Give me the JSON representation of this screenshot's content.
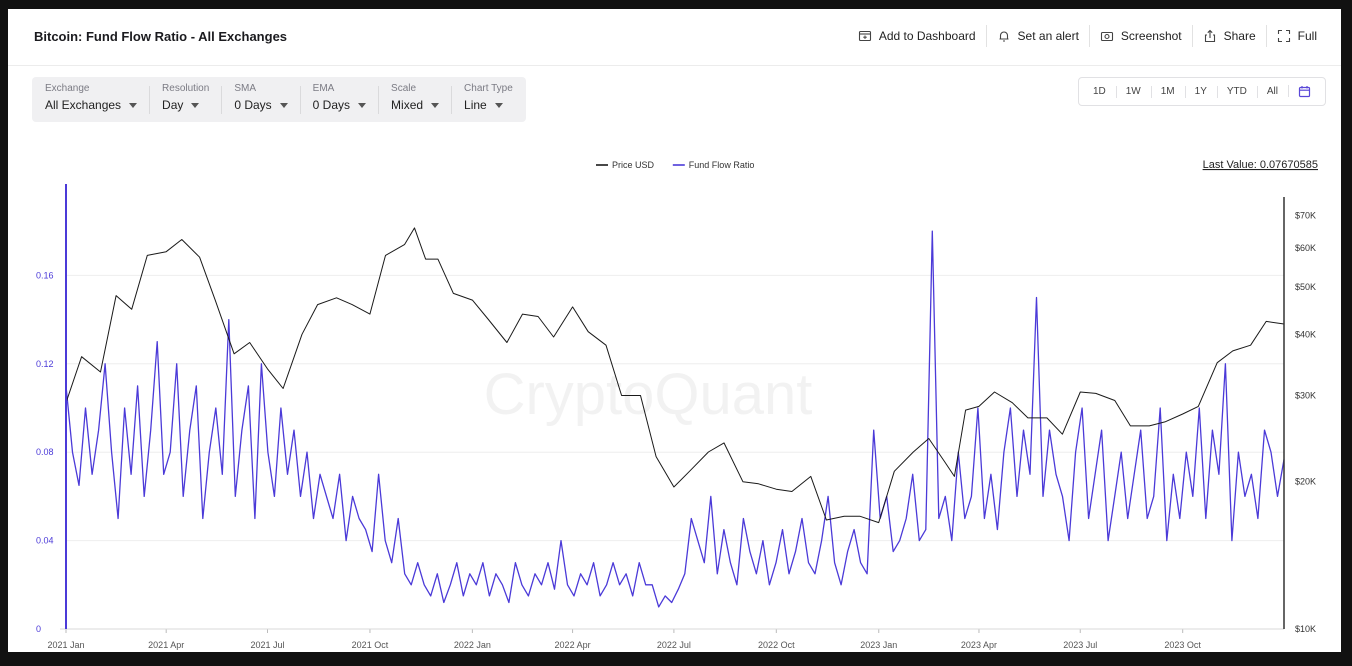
{
  "header": {
    "title": "Bitcoin: Fund Flow Ratio - All Exchanges",
    "actions": [
      {
        "label": "Add to Dashboard",
        "icon": "dashboard-icon"
      },
      {
        "label": "Set an alert",
        "icon": "bell-icon"
      },
      {
        "label": "Screenshot",
        "icon": "camera-icon"
      },
      {
        "label": "Share",
        "icon": "share-icon"
      },
      {
        "label": "Full",
        "icon": "fullscreen-icon"
      }
    ]
  },
  "filters": [
    {
      "label": "Exchange",
      "value": "All Exchanges"
    },
    {
      "label": "Resolution",
      "value": "Day"
    },
    {
      "label": "SMA",
      "value": "0 Days"
    },
    {
      "label": "EMA",
      "value": "0 Days"
    },
    {
      "label": "Scale",
      "value": "Mixed"
    },
    {
      "label": "Chart Type",
      "value": "Line"
    }
  ],
  "ranges": [
    "1D",
    "1W",
    "1M",
    "1Y",
    "YTD",
    "All"
  ],
  "calendar_icon": "calendar-icon",
  "watermark": "CryptoQuant",
  "colors": {
    "price": "#1a1a1a",
    "ratio": "#4b3ad8",
    "axis_left": "#4b3ad8",
    "axis_right": "#333333",
    "grid": "#eeeeee"
  },
  "chart_data": {
    "type": "line",
    "title": "Bitcoin: Fund Flow Ratio - All Exchanges",
    "last_value_label": "Last Value: 0.07670585",
    "legend_position": "top-center",
    "grid": true,
    "x_tick_labels": [
      "2021 Jan",
      "2021 Apr",
      "2021 Jul",
      "2021 Oct",
      "2022 Jan",
      "2022 Apr",
      "2022 Jul",
      "2022 Oct",
      "2023 Jan",
      "2023 Apr",
      "2023 Jul",
      "2023 Oct"
    ],
    "x_range": [
      "2021-01-01",
      "2023-12-31"
    ],
    "y_left": {
      "ticks": [
        "0",
        "0.04",
        "0.08",
        "0.12",
        "0.16"
      ],
      "ylim": [
        0,
        0.2
      ]
    },
    "y_right": {
      "scale": "log",
      "ticks": [
        "$10K",
        "$20K",
        "$30K",
        "$40K",
        "$50K",
        "$60K",
        "$70K"
      ],
      "ylim": [
        10000,
        80000
      ]
    },
    "series": [
      {
        "name": "Price USD",
        "axis": "right",
        "x": [
          "2021-01-01",
          "2021-01-15",
          "2021-02-01",
          "2021-02-15",
          "2021-03-01",
          "2021-03-15",
          "2021-04-01",
          "2021-04-15",
          "2021-05-01",
          "2021-05-15",
          "2021-06-01",
          "2021-06-15",
          "2021-07-01",
          "2021-07-15",
          "2021-08-01",
          "2021-08-15",
          "2021-09-01",
          "2021-09-15",
          "2021-10-01",
          "2021-10-15",
          "2021-11-01",
          "2021-11-10",
          "2021-11-20",
          "2021-12-01",
          "2021-12-15",
          "2022-01-01",
          "2022-01-15",
          "2022-02-01",
          "2022-02-15",
          "2022-03-01",
          "2022-03-15",
          "2022-04-01",
          "2022-04-15",
          "2022-05-01",
          "2022-05-15",
          "2022-06-01",
          "2022-06-15",
          "2022-07-01",
          "2022-07-15",
          "2022-08-01",
          "2022-08-15",
          "2022-09-01",
          "2022-09-15",
          "2022-10-01",
          "2022-10-15",
          "2022-11-01",
          "2022-11-15",
          "2022-12-01",
          "2022-12-15",
          "2023-01-01",
          "2023-01-15",
          "2023-02-01",
          "2023-02-15",
          "2023-03-01",
          "2023-03-10",
          "2023-03-20",
          "2023-04-01",
          "2023-04-15",
          "2023-05-01",
          "2023-05-15",
          "2023-06-01",
          "2023-06-15",
          "2023-07-01",
          "2023-07-15",
          "2023-08-01",
          "2023-08-15",
          "2023-09-01",
          "2023-09-15",
          "2023-10-01",
          "2023-10-15",
          "2023-11-01",
          "2023-11-15",
          "2023-12-01",
          "2023-12-15",
          "2023-12-31"
        ],
        "values": [
          29000,
          36000,
          33500,
          48000,
          45000,
          58000,
          59000,
          62500,
          57500,
          47000,
          36500,
          38500,
          34000,
          31000,
          40000,
          46000,
          47500,
          46000,
          44000,
          58000,
          61000,
          66000,
          57000,
          57000,
          48500,
          47000,
          43000,
          38500,
          44000,
          43500,
          39500,
          45500,
          40500,
          38000,
          30000,
          30000,
          22500,
          19500,
          21000,
          23000,
          24000,
          20000,
          19800,
          19300,
          19100,
          20500,
          16700,
          17000,
          17000,
          16500,
          21000,
          23000,
          24500,
          22000,
          20500,
          28000,
          28500,
          30500,
          29000,
          27000,
          27000,
          25000,
          30500,
          30300,
          29300,
          26000,
          26000,
          26500,
          27500,
          28500,
          35000,
          37000,
          38000,
          42500,
          42000
        ]
      },
      {
        "name": "Fund Flow Ratio",
        "axis": "left",
        "x_start": "2021-01-01",
        "x_end": "2023-12-31",
        "values": [
          0.11,
          0.08,
          0.065,
          0.1,
          0.07,
          0.09,
          0.12,
          0.08,
          0.05,
          0.1,
          0.07,
          0.11,
          0.06,
          0.09,
          0.13,
          0.07,
          0.08,
          0.12,
          0.06,
          0.09,
          0.11,
          0.05,
          0.08,
          0.1,
          0.07,
          0.14,
          0.06,
          0.09,
          0.11,
          0.05,
          0.12,
          0.08,
          0.06,
          0.1,
          0.07,
          0.09,
          0.06,
          0.08,
          0.05,
          0.07,
          0.06,
          0.05,
          0.07,
          0.04,
          0.06,
          0.05,
          0.045,
          0.035,
          0.07,
          0.04,
          0.03,
          0.05,
          0.025,
          0.02,
          0.03,
          0.02,
          0.015,
          0.025,
          0.012,
          0.02,
          0.03,
          0.015,
          0.025,
          0.02,
          0.03,
          0.015,
          0.025,
          0.02,
          0.012,
          0.03,
          0.02,
          0.015,
          0.025,
          0.02,
          0.03,
          0.018,
          0.04,
          0.02,
          0.015,
          0.025,
          0.02,
          0.03,
          0.015,
          0.02,
          0.03,
          0.02,
          0.025,
          0.015,
          0.03,
          0.02,
          0.02,
          0.01,
          0.015,
          0.012,
          0.018,
          0.025,
          0.05,
          0.04,
          0.03,
          0.06,
          0.025,
          0.045,
          0.03,
          0.02,
          0.05,
          0.035,
          0.025,
          0.04,
          0.02,
          0.03,
          0.045,
          0.025,
          0.035,
          0.05,
          0.03,
          0.025,
          0.04,
          0.06,
          0.03,
          0.02,
          0.035,
          0.045,
          0.03,
          0.025,
          0.09,
          0.05,
          0.06,
          0.035,
          0.04,
          0.05,
          0.07,
          0.04,
          0.045,
          0.18,
          0.05,
          0.06,
          0.04,
          0.08,
          0.05,
          0.06,
          0.1,
          0.05,
          0.07,
          0.045,
          0.08,
          0.1,
          0.06,
          0.09,
          0.07,
          0.15,
          0.06,
          0.09,
          0.07,
          0.06,
          0.04,
          0.08,
          0.1,
          0.05,
          0.07,
          0.09,
          0.04,
          0.06,
          0.08,
          0.05,
          0.07,
          0.09,
          0.05,
          0.06,
          0.1,
          0.04,
          0.07,
          0.05,
          0.08,
          0.06,
          0.1,
          0.05,
          0.09,
          0.07,
          0.12,
          0.04,
          0.08,
          0.06,
          0.07,
          0.05,
          0.09,
          0.08,
          0.06,
          0.0767
        ]
      }
    ]
  }
}
